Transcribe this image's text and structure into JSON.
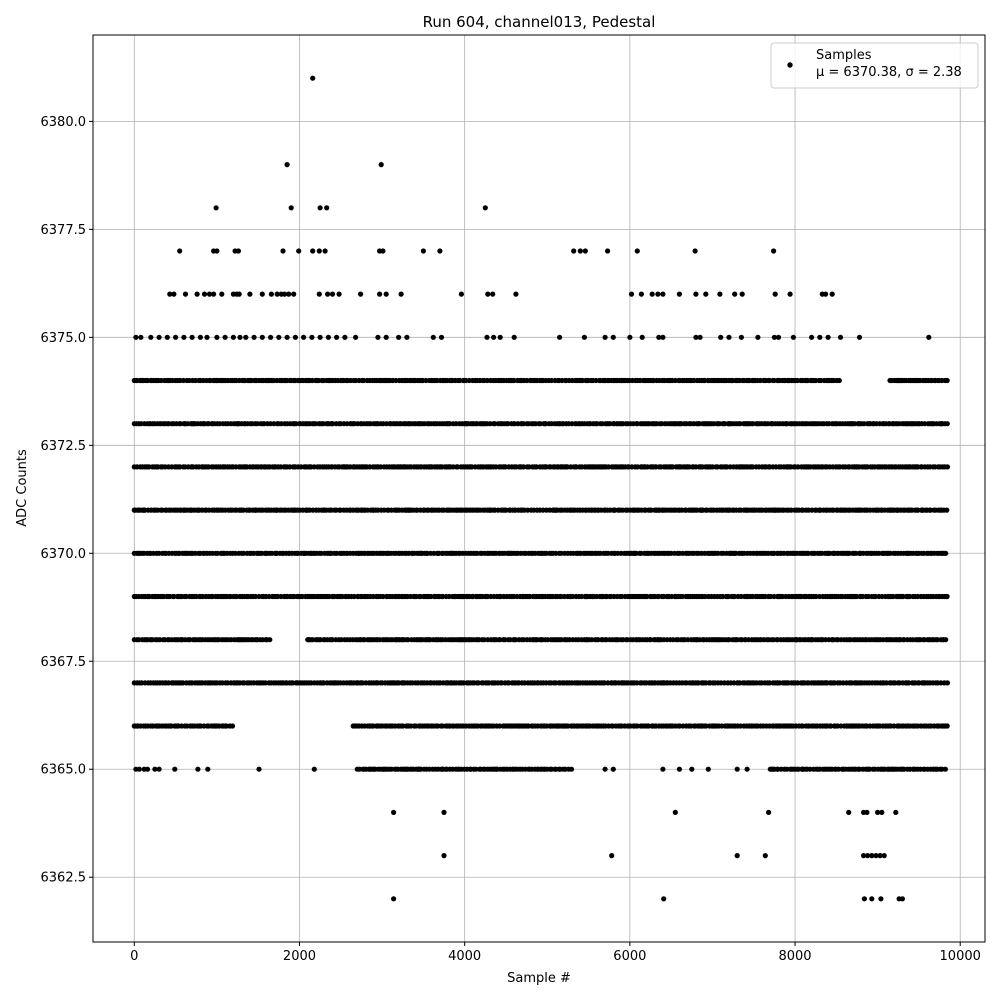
{
  "chart_data": {
    "type": "scatter",
    "title": "Run 604, channel013, Pedestal",
    "xlabel": "Sample #",
    "ylabel": "ADC Counts",
    "xlim": [
      -500,
      10300
    ],
    "ylim": [
      6361.0,
      6382.0
    ],
    "xticks": [
      0,
      2000,
      4000,
      6000,
      8000,
      10000
    ],
    "xtick_labels": [
      "0",
      "2000",
      "4000",
      "6000",
      "8000",
      "10000"
    ],
    "yticks": [
      6362.5,
      6365.0,
      6367.5,
      6370.0,
      6372.5,
      6375.0,
      6377.5,
      6380.0
    ],
    "ytick_labels": [
      "6362.5",
      "6365.0",
      "6367.5",
      "6370.0",
      "6372.5",
      "6375.0",
      "6377.5",
      "6380.0"
    ],
    "grid": true,
    "legend_position": "top-right",
    "marker_color": "#000000",
    "series": [
      {
        "name": "Samples",
        "stats_label": "μ = 6370.38, σ = 2.38",
        "bands": [
          {
            "y": 6374,
            "ranges": [
              [
                0,
                8570
              ],
              [
                9150,
                9850
              ]
            ]
          },
          {
            "y": 6373,
            "ranges": [
              [
                0,
                9850
              ]
            ]
          },
          {
            "y": 6372,
            "ranges": [
              [
                0,
                9850
              ]
            ]
          },
          {
            "y": 6371,
            "ranges": [
              [
                0,
                9850
              ]
            ]
          },
          {
            "y": 6370,
            "ranges": [
              [
                0,
                9850
              ]
            ]
          },
          {
            "y": 6369,
            "ranges": [
              [
                0,
                9850
              ]
            ]
          },
          {
            "y": 6368,
            "ranges": [
              [
                0,
                1650
              ],
              [
                2100,
                9850
              ]
            ]
          },
          {
            "y": 6367,
            "ranges": [
              [
                0,
                9850
              ]
            ]
          },
          {
            "y": 6366,
            "ranges": [
              [
                0,
                1200
              ],
              [
                2650,
                9850
              ]
            ]
          },
          {
            "y": 6365,
            "ranges": [
              [
                2700,
                5300
              ],
              [
                7700,
                9850
              ]
            ]
          }
        ],
        "points": [
          {
            "x": 2160,
            "y": 6381
          },
          {
            "x": 1850,
            "y": 6379
          },
          {
            "x": 2990,
            "y": 6379
          },
          {
            "x": 990,
            "y": 6378
          },
          {
            "x": 1900,
            "y": 6378
          },
          {
            "x": 2250,
            "y": 6378
          },
          {
            "x": 2330,
            "y": 6378
          },
          {
            "x": 4250,
            "y": 6378
          },
          {
            "x": 550,
            "y": 6377
          },
          {
            "x": 960,
            "y": 6377
          },
          {
            "x": 1000,
            "y": 6377
          },
          {
            "x": 1220,
            "y": 6377
          },
          {
            "x": 1260,
            "y": 6377
          },
          {
            "x": 1800,
            "y": 6377
          },
          {
            "x": 1990,
            "y": 6377
          },
          {
            "x": 2160,
            "y": 6377
          },
          {
            "x": 2240,
            "y": 6377
          },
          {
            "x": 2310,
            "y": 6377
          },
          {
            "x": 2970,
            "y": 6377
          },
          {
            "x": 3010,
            "y": 6377
          },
          {
            "x": 3500,
            "y": 6377
          },
          {
            "x": 3700,
            "y": 6377
          },
          {
            "x": 5320,
            "y": 6377
          },
          {
            "x": 5400,
            "y": 6377
          },
          {
            "x": 5460,
            "y": 6377
          },
          {
            "x": 5730,
            "y": 6377
          },
          {
            "x": 6090,
            "y": 6377
          },
          {
            "x": 6790,
            "y": 6377
          },
          {
            "x": 7740,
            "y": 6377
          },
          {
            "x": 430,
            "y": 6376
          },
          {
            "x": 480,
            "y": 6376
          },
          {
            "x": 620,
            "y": 6376
          },
          {
            "x": 760,
            "y": 6376
          },
          {
            "x": 850,
            "y": 6376
          },
          {
            "x": 910,
            "y": 6376
          },
          {
            "x": 960,
            "y": 6376
          },
          {
            "x": 1060,
            "y": 6376
          },
          {
            "x": 1200,
            "y": 6376
          },
          {
            "x": 1240,
            "y": 6376
          },
          {
            "x": 1270,
            "y": 6376
          },
          {
            "x": 1400,
            "y": 6376
          },
          {
            "x": 1550,
            "y": 6376
          },
          {
            "x": 1660,
            "y": 6376
          },
          {
            "x": 1730,
            "y": 6376
          },
          {
            "x": 1780,
            "y": 6376
          },
          {
            "x": 1820,
            "y": 6376
          },
          {
            "x": 1870,
            "y": 6376
          },
          {
            "x": 1930,
            "y": 6376
          },
          {
            "x": 2240,
            "y": 6376
          },
          {
            "x": 2340,
            "y": 6376
          },
          {
            "x": 2400,
            "y": 6376
          },
          {
            "x": 2480,
            "y": 6376
          },
          {
            "x": 2740,
            "y": 6376
          },
          {
            "x": 2970,
            "y": 6376
          },
          {
            "x": 3050,
            "y": 6376
          },
          {
            "x": 3230,
            "y": 6376
          },
          {
            "x": 3960,
            "y": 6376
          },
          {
            "x": 4280,
            "y": 6376
          },
          {
            "x": 4340,
            "y": 6376
          },
          {
            "x": 4620,
            "y": 6376
          },
          {
            "x": 6020,
            "y": 6376
          },
          {
            "x": 6140,
            "y": 6376
          },
          {
            "x": 6270,
            "y": 6376
          },
          {
            "x": 6340,
            "y": 6376
          },
          {
            "x": 6400,
            "y": 6376
          },
          {
            "x": 6600,
            "y": 6376
          },
          {
            "x": 6800,
            "y": 6376
          },
          {
            "x": 6920,
            "y": 6376
          },
          {
            "x": 7090,
            "y": 6376
          },
          {
            "x": 7270,
            "y": 6376
          },
          {
            "x": 7360,
            "y": 6376
          },
          {
            "x": 7760,
            "y": 6376
          },
          {
            "x": 7940,
            "y": 6376
          },
          {
            "x": 8330,
            "y": 6376
          },
          {
            "x": 8370,
            "y": 6376
          },
          {
            "x": 8450,
            "y": 6376
          },
          {
            "x": 20,
            "y": 6375
          },
          {
            "x": 80,
            "y": 6375
          },
          {
            "x": 200,
            "y": 6375
          },
          {
            "x": 300,
            "y": 6375
          },
          {
            "x": 400,
            "y": 6375
          },
          {
            "x": 500,
            "y": 6375
          },
          {
            "x": 600,
            "y": 6375
          },
          {
            "x": 700,
            "y": 6375
          },
          {
            "x": 800,
            "y": 6375
          },
          {
            "x": 880,
            "y": 6375
          },
          {
            "x": 1000,
            "y": 6375
          },
          {
            "x": 1100,
            "y": 6375
          },
          {
            "x": 1200,
            "y": 6375
          },
          {
            "x": 1280,
            "y": 6375
          },
          {
            "x": 1350,
            "y": 6375
          },
          {
            "x": 1450,
            "y": 6375
          },
          {
            "x": 1550,
            "y": 6375
          },
          {
            "x": 1650,
            "y": 6375
          },
          {
            "x": 1750,
            "y": 6375
          },
          {
            "x": 1850,
            "y": 6375
          },
          {
            "x": 1950,
            "y": 6375
          },
          {
            "x": 2050,
            "y": 6375
          },
          {
            "x": 2150,
            "y": 6375
          },
          {
            "x": 2250,
            "y": 6375
          },
          {
            "x": 2350,
            "y": 6375
          },
          {
            "x": 2450,
            "y": 6375
          },
          {
            "x": 2550,
            "y": 6375
          },
          {
            "x": 2680,
            "y": 6375
          },
          {
            "x": 2950,
            "y": 6375
          },
          {
            "x": 3050,
            "y": 6375
          },
          {
            "x": 3200,
            "y": 6375
          },
          {
            "x": 3300,
            "y": 6375
          },
          {
            "x": 3620,
            "y": 6375
          },
          {
            "x": 3720,
            "y": 6375
          },
          {
            "x": 4270,
            "y": 6375
          },
          {
            "x": 4350,
            "y": 6375
          },
          {
            "x": 4430,
            "y": 6375
          },
          {
            "x": 4600,
            "y": 6375
          },
          {
            "x": 5150,
            "y": 6375
          },
          {
            "x": 5450,
            "y": 6375
          },
          {
            "x": 5700,
            "y": 6375
          },
          {
            "x": 5800,
            "y": 6375
          },
          {
            "x": 6000,
            "y": 6375
          },
          {
            "x": 6150,
            "y": 6375
          },
          {
            "x": 6350,
            "y": 6375
          },
          {
            "x": 6400,
            "y": 6375
          },
          {
            "x": 6800,
            "y": 6375
          },
          {
            "x": 6850,
            "y": 6375
          },
          {
            "x": 7100,
            "y": 6375
          },
          {
            "x": 7200,
            "y": 6375
          },
          {
            "x": 7350,
            "y": 6375
          },
          {
            "x": 7550,
            "y": 6375
          },
          {
            "x": 7750,
            "y": 6375
          },
          {
            "x": 7800,
            "y": 6375
          },
          {
            "x": 7980,
            "y": 6375
          },
          {
            "x": 8200,
            "y": 6375
          },
          {
            "x": 8300,
            "y": 6375
          },
          {
            "x": 8400,
            "y": 6375
          },
          {
            "x": 8550,
            "y": 6375
          },
          {
            "x": 8780,
            "y": 6375
          },
          {
            "x": 9620,
            "y": 6375
          },
          {
            "x": 3140,
            "y": 6364
          },
          {
            "x": 3750,
            "y": 6364
          },
          {
            "x": 6550,
            "y": 6364
          },
          {
            "x": 7680,
            "y": 6364
          },
          {
            "x": 8650,
            "y": 6364
          },
          {
            "x": 8830,
            "y": 6364
          },
          {
            "x": 8870,
            "y": 6364
          },
          {
            "x": 9000,
            "y": 6364
          },
          {
            "x": 9050,
            "y": 6364
          },
          {
            "x": 9220,
            "y": 6364
          },
          {
            "x": 3750,
            "y": 6363
          },
          {
            "x": 5780,
            "y": 6363
          },
          {
            "x": 7300,
            "y": 6363
          },
          {
            "x": 7640,
            "y": 6363
          },
          {
            "x": 8830,
            "y": 6363
          },
          {
            "x": 8880,
            "y": 6363
          },
          {
            "x": 8930,
            "y": 6363
          },
          {
            "x": 8980,
            "y": 6363
          },
          {
            "x": 9030,
            "y": 6363
          },
          {
            "x": 9080,
            "y": 6363
          },
          {
            "x": 3140,
            "y": 6362
          },
          {
            "x": 6410,
            "y": 6362
          },
          {
            "x": 8840,
            "y": 6362
          },
          {
            "x": 8930,
            "y": 6362
          },
          {
            "x": 9040,
            "y": 6362
          },
          {
            "x": 9260,
            "y": 6362
          },
          {
            "x": 9300,
            "y": 6362
          },
          {
            "x": 20,
            "y": 6365
          },
          {
            "x": 60,
            "y": 6365
          },
          {
            "x": 120,
            "y": 6365
          },
          {
            "x": 160,
            "y": 6365
          },
          {
            "x": 250,
            "y": 6365
          },
          {
            "x": 300,
            "y": 6365
          },
          {
            "x": 490,
            "y": 6365
          },
          {
            "x": 770,
            "y": 6365
          },
          {
            "x": 890,
            "y": 6365
          },
          {
            "x": 1510,
            "y": 6365
          },
          {
            "x": 2180,
            "y": 6365
          },
          {
            "x": 5700,
            "y": 6365
          },
          {
            "x": 5800,
            "y": 6365
          },
          {
            "x": 6400,
            "y": 6365
          },
          {
            "x": 6600,
            "y": 6365
          },
          {
            "x": 6750,
            "y": 6365
          },
          {
            "x": 6950,
            "y": 6365
          },
          {
            "x": 7300,
            "y": 6365
          },
          {
            "x": 7420,
            "y": 6365
          }
        ]
      }
    ]
  }
}
